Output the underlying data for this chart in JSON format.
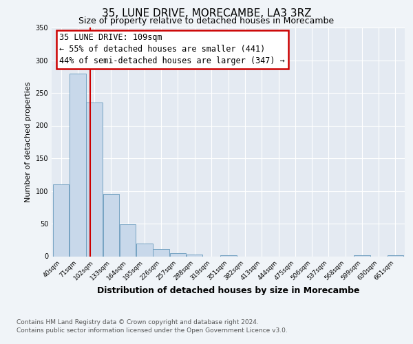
{
  "title": "35, LUNE DRIVE, MORECAMBE, LA3 3RZ",
  "subtitle": "Size of property relative to detached houses in Morecambe",
  "xlabel": "Distribution of detached houses by size in Morecambe",
  "ylabel": "Number of detached properties",
  "bar_edges": [
    40,
    71,
    102,
    133,
    164,
    195,
    226,
    257,
    288,
    319,
    351,
    382,
    413,
    444,
    475,
    506,
    537,
    568,
    599,
    630,
    661
  ],
  "bar_heights": [
    110,
    280,
    235,
    95,
    49,
    19,
    11,
    5,
    3,
    0,
    2,
    0,
    0,
    0,
    0,
    0,
    0,
    0,
    2,
    0,
    2
  ],
  "tick_labels": [
    "40sqm",
    "71sqm",
    "102sqm",
    "133sqm",
    "164sqm",
    "195sqm",
    "226sqm",
    "257sqm",
    "288sqm",
    "319sqm",
    "351sqm",
    "382sqm",
    "413sqm",
    "444sqm",
    "475sqm",
    "506sqm",
    "537sqm",
    "568sqm",
    "599sqm",
    "630sqm",
    "661sqm"
  ],
  "bar_color": "#c8d8ea",
  "bar_edgecolor": "#6699bb",
  "vline_x": 109,
  "vline_color": "#cc0000",
  "ylim": [
    0,
    350
  ],
  "yticks": [
    0,
    50,
    100,
    150,
    200,
    250,
    300,
    350
  ],
  "annotation_line1": "35 LUNE DRIVE: 109sqm",
  "annotation_line2": "← 55% of detached houses are smaller (441)",
  "annotation_line3": "44% of semi-detached houses are larger (347) →",
  "annotation_box_edgecolor": "#cc0000",
  "footer1": "Contains HM Land Registry data © Crown copyright and database right 2024.",
  "footer2": "Contains public sector information licensed under the Open Government Licence v3.0.",
  "fig_facecolor": "#f0f4f8",
  "plot_facecolor": "#e4eaf2",
  "grid_color": "#ffffff",
  "title_fontsize": 11,
  "subtitle_fontsize": 9,
  "ylabel_fontsize": 8,
  "xlabel_fontsize": 9,
  "tick_fontsize": 6.5,
  "annotation_fontsize": 8.5,
  "footer_fontsize": 6.5
}
